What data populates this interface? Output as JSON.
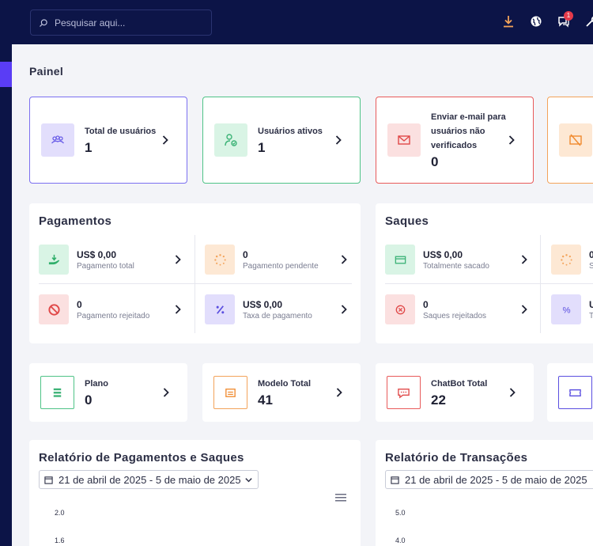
{
  "search": {
    "placeholder": "Pesquisar aqui..."
  },
  "topbar": {
    "notification_count": "1"
  },
  "page_title": "Painel",
  "stats": [
    {
      "label": "Total de usuários",
      "value": "1",
      "color": "#7b6ff0",
      "bg": "#e2defc"
    },
    {
      "label": "Usuários ativos",
      "value": "1",
      "color": "#4fc387",
      "bg": "#d9f4e5"
    },
    {
      "label": "Enviar e-mail para usuários não verificados",
      "value": "0",
      "color": "#e85a5a",
      "bg": "#fbe0e0"
    },
    {
      "label": "",
      "value": "",
      "color": "#f3a35a",
      "bg": "#fde8d4"
    }
  ],
  "payments": {
    "title": "Pagamentos",
    "items": [
      {
        "value": "US$ 0,00",
        "label": "Pagamento total"
      },
      {
        "value": "0",
        "label": "Pagamento pendente"
      },
      {
        "value": "0",
        "label": "Pagamento rejeitado"
      },
      {
        "value": "US$ 0,00",
        "label": "Taxa de pagamento"
      }
    ]
  },
  "withdrawals": {
    "title": "Saques",
    "items": [
      {
        "value": "US$ 0,00",
        "label": "Totalmente sacado"
      },
      {
        "value": "0",
        "label": "S"
      },
      {
        "value": "0",
        "label": "Saques rejeitados"
      },
      {
        "value": "U",
        "label": "T"
      }
    ]
  },
  "small_stats": [
    {
      "label": "Plano",
      "value": "0"
    },
    {
      "label": "Modelo Total",
      "value": "41"
    },
    {
      "label": "ChatBot Total",
      "value": "22"
    },
    {
      "label": "",
      "value": ""
    }
  ],
  "report1": {
    "title": "Relatório de Pagamentos e Saques",
    "date_range": "21 de abril de 2025 - 5 de maio de 2025",
    "ticks": [
      "2.0",
      "1.6"
    ]
  },
  "report2": {
    "title": "Relatório de Transações",
    "date_range": "21 de abril de 2025 - 5 de maio de 2025",
    "ticks": [
      "5.0",
      "4.0"
    ]
  }
}
